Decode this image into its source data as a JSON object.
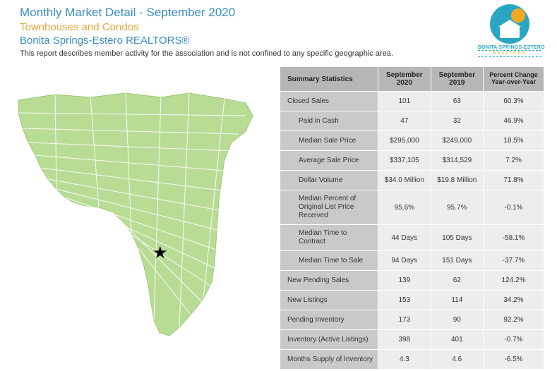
{
  "header": {
    "title1": "Monthly Market Detail - September 2020",
    "title2": "Townhouses and Condos",
    "title3": "Bonita Springs-Estero REALTORS®",
    "subtitle": "This report describes member activity for the association and is not confined to any specific geographic area."
  },
  "logo": {
    "line1": "BONITA SPRINGS-ESTERO",
    "line2": "REALTORS"
  },
  "map": {
    "fill_color": "#b9dc95",
    "stroke_color": "#ffffff",
    "star_glyph": "★"
  },
  "table": {
    "headers": [
      "Summary Statistics",
      "September 2020",
      "September 2019",
      "Percent Change Year-over-Year"
    ],
    "header_bg": "#b6b6b6",
    "label_bg": "#c9c9c9",
    "value_bg": "#ededed",
    "rows": [
      {
        "label": "Closed Sales",
        "indent": false,
        "v1": "101",
        "v2": "63",
        "pct": "60.3%"
      },
      {
        "label": "Paid in Cash",
        "indent": true,
        "v1": "47",
        "v2": "32",
        "pct": "46.9%"
      },
      {
        "label": "Median Sale Price",
        "indent": true,
        "v1": "$295,000",
        "v2": "$249,000",
        "pct": "18.5%"
      },
      {
        "label": "Average Sale Price",
        "indent": true,
        "v1": "$337,105",
        "v2": "$314,529",
        "pct": "7.2%"
      },
      {
        "label": "Dollar Volume",
        "indent": true,
        "v1": "$34.0 Million",
        "v2": "$19.8 Million",
        "pct": "71.8%"
      },
      {
        "label": "Median Percent of Original List Price Received",
        "indent": true,
        "v1": "95.6%",
        "v2": "95.7%",
        "pct": "-0.1%"
      },
      {
        "label": "Median Time to Contract",
        "indent": true,
        "v1": "44 Days",
        "v2": "105 Days",
        "pct": "-58.1%"
      },
      {
        "label": "Median Time to Sale",
        "indent": true,
        "v1": "94 Days",
        "v2": "151 Days",
        "pct": "-37.7%"
      },
      {
        "label": "New Pending Sales",
        "indent": false,
        "v1": "139",
        "v2": "62",
        "pct": "124.2%"
      },
      {
        "label": "New Listings",
        "indent": false,
        "v1": "153",
        "v2": "114",
        "pct": "34.2%"
      },
      {
        "label": "Pending Inventory",
        "indent": false,
        "v1": "173",
        "v2": "90",
        "pct": "92.2%"
      },
      {
        "label": "Inventory (Active Listings)",
        "indent": false,
        "v1": "398",
        "v2": "401",
        "pct": "-0.7%"
      },
      {
        "label": "Months Supply of Inventory",
        "indent": false,
        "v1": "4.3",
        "v2": "4.6",
        "pct": "-6.5%"
      }
    ]
  }
}
